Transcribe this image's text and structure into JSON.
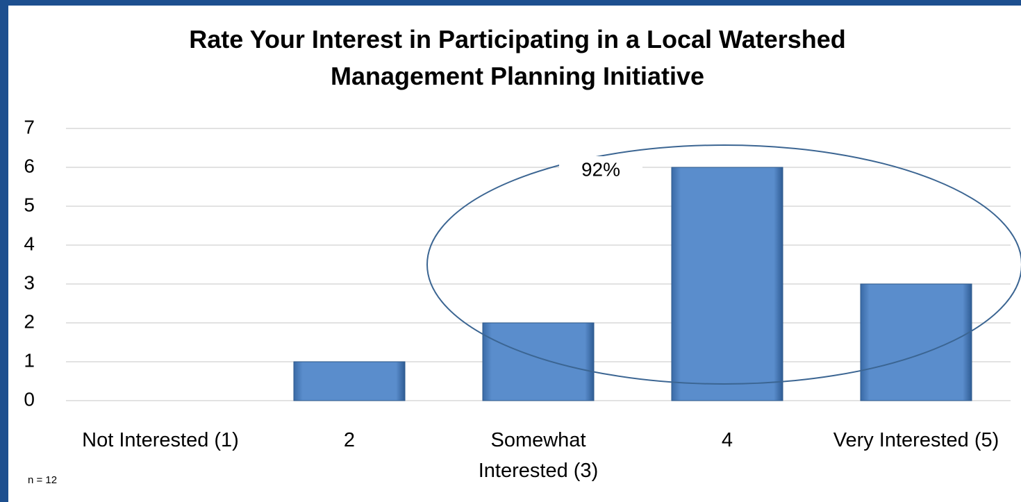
{
  "chart_data": {
    "type": "bar",
    "title": "Rate Your Interest in Participating in a Local Watershed Management Planning Initiative",
    "categories": [
      "Not Interested (1)",
      "2",
      "Somewhat Interested (3)",
      "4",
      "Very Interested (5)"
    ],
    "values": [
      0,
      1,
      2,
      6,
      3
    ],
    "color": "#4f81bd",
    "ylim": [
      0,
      7
    ],
    "yticks": [
      0,
      1,
      2,
      3,
      4,
      5,
      6,
      7
    ],
    "grid": true,
    "annotation": "92%",
    "note": "n = 12"
  }
}
